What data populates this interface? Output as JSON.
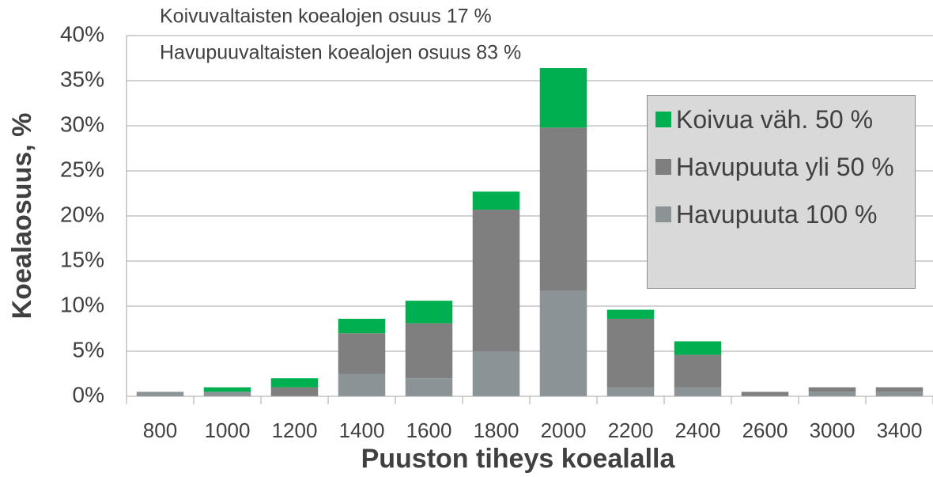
{
  "chart_data": {
    "type": "stacked_bar",
    "annotations": [
      "Koivuvaltaisten koealojen osuus 17 %",
      "Havupuuvaltaisten koealojen osuus 83 %"
    ],
    "x_label": "Puuston tiheys koealalla",
    "y_label": "Koealaosuus, %",
    "categories": [
      "800",
      "1000",
      "1200",
      "1400",
      "1600",
      "1800",
      "2000",
      "2200",
      "2400",
      "2600",
      "3000",
      "3400"
    ],
    "series": [
      {
        "name": "Havupuuta 100 %",
        "color": "#8c9396",
        "values": [
          0.5,
          0.5,
          0,
          2.5,
          2,
          5,
          11.7,
          1,
          1,
          0,
          0.5,
          0.5
        ]
      },
      {
        "name": "Havupuuta yli 50 %",
        "color": "#7f7f7f",
        "values": [
          0,
          0,
          1,
          4.5,
          6.1,
          15.7,
          18.1,
          7.6,
          3.6,
          0.5,
          0.5,
          0.5
        ]
      },
      {
        "name": "Koivua väh. 50 %",
        "color": "#00b050",
        "values": [
          0,
          0.5,
          1,
          1.6,
          2.5,
          2,
          6.6,
          1,
          1.5,
          0,
          0,
          0
        ]
      }
    ],
    "ylim": [
      0,
      40
    ],
    "yticks": [
      {
        "value": 0,
        "label": "0%"
      },
      {
        "value": 5,
        "label": "5%"
      },
      {
        "value": 10,
        "label": "10%"
      },
      {
        "value": 15,
        "label": "15%"
      },
      {
        "value": 20,
        "label": "20%"
      },
      {
        "value": 25,
        "label": "25%"
      },
      {
        "value": 30,
        "label": "30%"
      },
      {
        "value": 35,
        "label": "35%"
      },
      {
        "value": 40,
        "label": "40%"
      }
    ],
    "grid": true
  }
}
